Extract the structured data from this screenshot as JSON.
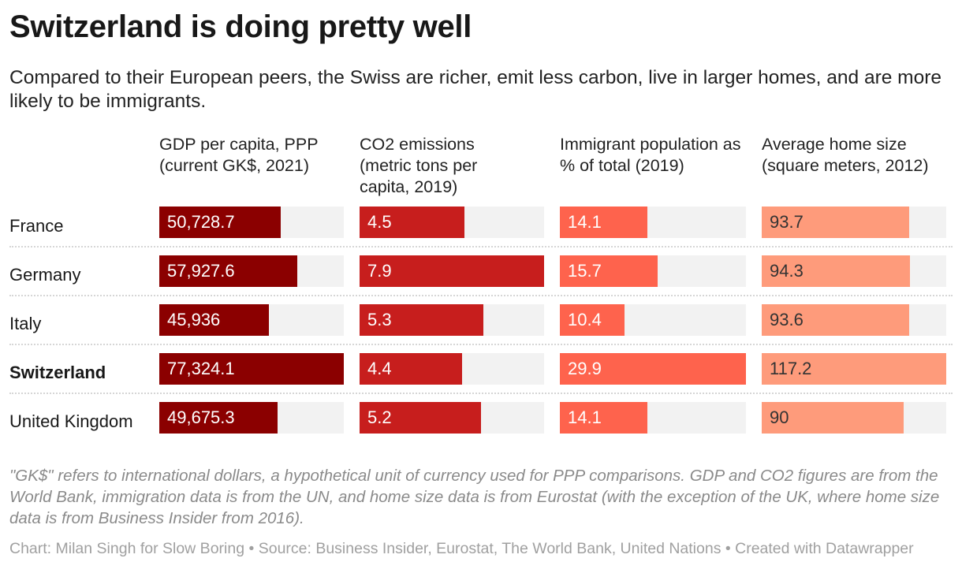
{
  "title": "Switzerland is doing pretty well",
  "subtitle": "Compared to their European peers, the Swiss are richer, emit less carbon, live in larger homes, and are more likely to be immigrants.",
  "notes": "\"GK$\" refers to international dollars, a hypothetical unit of currency used for PPP comparisons. GDP and CO2 figures are from the World Bank, immigration data is from the UN, and home size data is from Eurostat (with the exception of the UK, where home size data is from Business Insider from 2016).",
  "footer": "Chart: Milan Singh for Slow Boring • Source: Business Insider, Eurostat, The World Bank, United Nations • Created with Datawrapper",
  "chart_data": {
    "type": "table",
    "columns": [
      {
        "header": "GDP per capita, PPP (current GK$, 2021)",
        "color": "#8b0000",
        "text_color": "#ffffff",
        "max": 77324.1
      },
      {
        "header": "CO2 emissions (metric tons per capita, 2019)",
        "color": "#c71e1d",
        "text_color": "#ffffff",
        "max": 7.9
      },
      {
        "header": "Immigrant population as % of total (2019)",
        "color": "#fe634d",
        "text_color": "#ffffff",
        "max": 29.9
      },
      {
        "header": "Average home size (square meters, 2012)",
        "color": "#fe9b7b",
        "text_color": "#333333",
        "max": 117.2
      }
    ],
    "rows": [
      {
        "country": "France",
        "values": [
          50728.7,
          4.5,
          14.1,
          93.7
        ],
        "labels": [
          "50,728.7",
          "4.5",
          "14.1",
          "93.7"
        ],
        "bold": false
      },
      {
        "country": "Germany",
        "values": [
          57927.6,
          7.9,
          15.7,
          94.3
        ],
        "labels": [
          "57,927.6",
          "7.9",
          "15.7",
          "94.3"
        ],
        "bold": false
      },
      {
        "country": "Italy",
        "values": [
          45936,
          5.3,
          10.4,
          93.6
        ],
        "labels": [
          "45,936",
          "5.3",
          "10.4",
          "93.6"
        ],
        "bold": false
      },
      {
        "country": "Switzerland",
        "values": [
          77324.1,
          4.4,
          29.9,
          117.2
        ],
        "labels": [
          "77,324.1",
          "4.4",
          "29.9",
          "117.2"
        ],
        "bold": true
      },
      {
        "country": "United Kingdom",
        "values": [
          49675.3,
          5.2,
          14.1,
          90
        ],
        "labels": [
          "49,675.3",
          "5.2",
          "14.1",
          "90"
        ],
        "bold": false
      }
    ]
  }
}
